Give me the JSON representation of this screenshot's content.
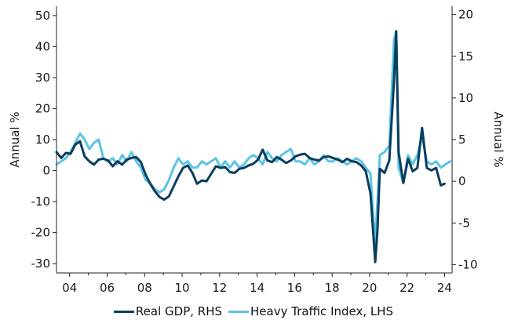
{
  "chart_data": {
    "type": "line",
    "title": "",
    "ylabel_left": "Annual %",
    "ylabel_right": "Annual %",
    "ylim_left": [
      -33,
      53
    ],
    "ylim_right": [
      -11,
      21
    ],
    "yticks_left": [
      -30,
      -20,
      -10,
      0,
      10,
      20,
      30,
      40,
      50
    ],
    "yticks_right": [
      -10,
      -5,
      0,
      5,
      10,
      15,
      20
    ],
    "xlim": [
      2003.3,
      2024.4
    ],
    "xticks": [
      {
        "x": 2004,
        "label": "04"
      },
      {
        "x": 2006,
        "label": "06"
      },
      {
        "x": 2008,
        "label": "08"
      },
      {
        "x": 2010,
        "label": "10"
      },
      {
        "x": 2012,
        "label": "12"
      },
      {
        "x": 2014,
        "label": "14"
      },
      {
        "x": 2016,
        "label": "16"
      },
      {
        "x": 2018,
        "label": "18"
      },
      {
        "x": 2020,
        "label": "20"
      },
      {
        "x": 2022,
        "label": "22"
      },
      {
        "x": 2024,
        "label": "24"
      }
    ],
    "legend_position": "bottom",
    "series": [
      {
        "name": "Real GDP, RHS",
        "axis": "right",
        "color": "#0b3d5c",
        "x": [
          2003.3,
          2003.55,
          2003.8,
          2004.05,
          2004.3,
          2004.55,
          2004.8,
          2005.05,
          2005.3,
          2005.55,
          2005.8,
          2006.05,
          2006.3,
          2006.55,
          2006.8,
          2007.05,
          2007.3,
          2007.55,
          2007.8,
          2008.05,
          2008.3,
          2008.55,
          2008.8,
          2009.05,
          2009.3,
          2009.55,
          2009.8,
          2010.05,
          2010.3,
          2010.55,
          2010.8,
          2011.05,
          2011.3,
          2011.55,
          2011.8,
          2012.05,
          2012.3,
          2012.55,
          2012.8,
          2013.05,
          2013.3,
          2013.55,
          2013.8,
          2014.05,
          2014.3,
          2014.55,
          2014.8,
          2015.05,
          2015.3,
          2015.55,
          2015.8,
          2016.05,
          2016.3,
          2016.55,
          2016.8,
          2017.05,
          2017.3,
          2017.55,
          2017.8,
          2018.05,
          2018.3,
          2018.55,
          2018.8,
          2019.05,
          2019.3,
          2019.55,
          2019.8,
          2020.05,
          2020.3,
          2020.42,
          2020.55,
          2020.8,
          2021.05,
          2021.3,
          2021.42,
          2021.55,
          2021.8,
          2022.05,
          2022.3,
          2022.55,
          2022.8,
          2023.05,
          2023.3,
          2023.55,
          2023.8,
          2024.0
        ],
        "values": [
          3.5,
          2.8,
          3.4,
          3.3,
          4.4,
          4.8,
          3.0,
          2.4,
          2.0,
          2.6,
          2.7,
          2.5,
          1.8,
          2.4,
          2.0,
          2.6,
          2.8,
          2.9,
          2.3,
          0.8,
          -0.3,
          -1.2,
          -1.9,
          -2.2,
          -1.8,
          -0.6,
          0.6,
          1.6,
          1.9,
          1.0,
          -0.3,
          0.1,
          0.0,
          0.9,
          1.8,
          1.6,
          1.7,
          1.1,
          1.0,
          1.5,
          1.6,
          1.9,
          2.1,
          2.6,
          3.8,
          2.5,
          2.3,
          2.9,
          2.6,
          2.2,
          2.5,
          3.0,
          3.2,
          3.3,
          2.8,
          2.6,
          2.5,
          2.9,
          3.0,
          2.8,
          2.6,
          2.3,
          2.7,
          2.4,
          2.3,
          1.9,
          1.2,
          -1.5,
          -9.7,
          -6.0,
          1.5,
          1.0,
          2.5,
          12.0,
          18.0,
          3.5,
          -0.2,
          2.7,
          1.2,
          1.6,
          6.4,
          1.6,
          1.3,
          1.6,
          -0.5,
          -0.3
        ]
      },
      {
        "name": "Heavy Traffic Index, LHS",
        "axis": "left",
        "color": "#5bc4e5",
        "x": [
          2003.3,
          2003.55,
          2003.8,
          2004.05,
          2004.3,
          2004.55,
          2004.8,
          2005.05,
          2005.3,
          2005.55,
          2005.8,
          2006.05,
          2006.3,
          2006.55,
          2006.8,
          2007.05,
          2007.3,
          2007.55,
          2007.8,
          2008.05,
          2008.3,
          2008.55,
          2008.8,
          2009.05,
          2009.3,
          2009.55,
          2009.8,
          2010.05,
          2010.3,
          2010.55,
          2010.8,
          2011.05,
          2011.3,
          2011.55,
          2011.8,
          2012.05,
          2012.3,
          2012.55,
          2012.8,
          2013.05,
          2013.3,
          2013.55,
          2013.8,
          2014.05,
          2014.3,
          2014.55,
          2014.8,
          2015.05,
          2015.3,
          2015.55,
          2015.8,
          2016.05,
          2016.3,
          2016.55,
          2016.8,
          2017.05,
          2017.3,
          2017.55,
          2017.8,
          2018.05,
          2018.3,
          2018.55,
          2018.8,
          2019.05,
          2019.3,
          2019.55,
          2019.8,
          2020.05,
          2020.3,
          2020.42,
          2020.55,
          2020.8,
          2021.05,
          2021.3,
          2021.42,
          2021.55,
          2021.8,
          2022.05,
          2022.3,
          2022.55,
          2022.8,
          2023.05,
          2023.3,
          2023.55,
          2023.8,
          2024.05,
          2024.3
        ],
        "values": [
          2,
          3,
          4,
          6,
          9,
          12,
          10,
          7,
          9,
          10,
          4,
          3,
          4,
          2,
          5,
          3,
          6,
          3,
          1,
          -3,
          -4,
          -6,
          -7,
          -6,
          -3,
          1,
          4,
          2,
          3,
          1,
          1,
          3,
          2,
          3,
          4,
          1,
          3,
          1,
          3,
          1,
          2,
          4,
          5,
          4,
          2,
          6,
          4,
          3,
          5,
          6,
          7,
          3,
          3,
          2,
          4,
          2,
          3,
          5,
          3,
          3,
          4,
          3,
          2,
          3,
          4,
          3,
          1,
          -1,
          -24,
          -10,
          5,
          6,
          8,
          42,
          45,
          1,
          -4,
          5,
          2,
          5,
          11,
          3,
          2,
          3,
          1,
          2,
          3
        ]
      }
    ]
  }
}
